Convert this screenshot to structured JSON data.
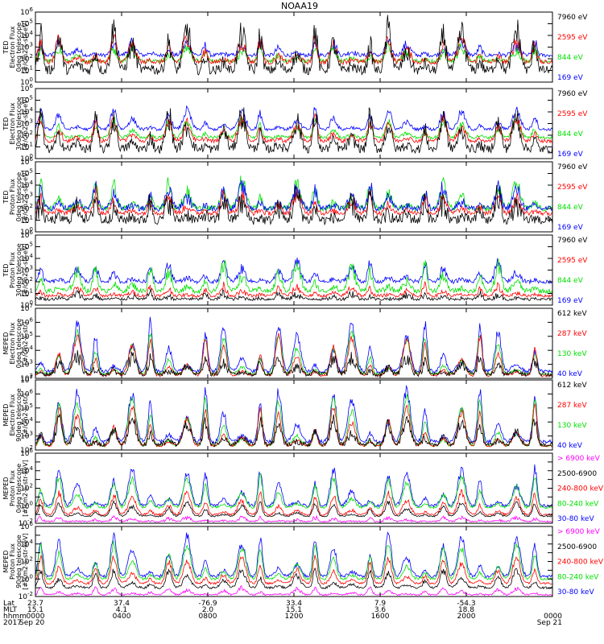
{
  "title": "NOAA19",
  "colors": {
    "black": "#000000",
    "blue": "#0000ff",
    "red": "#ff0000",
    "green": "#00e000",
    "magenta": "#ff00ff"
  },
  "chart_data": [
    {
      "type": "line",
      "ylabel": [
        "TED",
        "Electron Flux",
        "0deg telescope",
        "[#/cm2-s-str-eV]"
      ],
      "ylog": true,
      "ylim_exp": [
        0,
        6
      ],
      "ytick_exp": [
        0,
        1,
        2,
        3,
        4,
        5,
        6
      ],
      "legend": [
        {
          "label": "7960 eV",
          "color": "#000000"
        },
        {
          "label": "2595 eV",
          "color": "#ff0000"
        },
        {
          "label": "844 eV",
          "color": "#00e000"
        },
        {
          "label": "169 eV",
          "color": "#0000ff"
        }
      ],
      "series": [
        {
          "color": "#0000ff",
          "base": 2.3,
          "peak": 3.4,
          "noise": 0.4
        },
        {
          "color": "#00e000",
          "base": 1.8,
          "peak": 3.0,
          "noise": 0.4
        },
        {
          "color": "#ff0000",
          "base": 1.7,
          "peak": 3.8,
          "noise": 0.5
        },
        {
          "color": "#000000",
          "base": 1.0,
          "peak": 4.6,
          "noise": 1.0
        }
      ]
    },
    {
      "type": "line",
      "ylabel": [
        "TED",
        "Electron Flux",
        "30deg telescope",
        "[#/cm2-s-str-eV]"
      ],
      "ylog": true,
      "ylim_exp": [
        0,
        6
      ],
      "ytick_exp": [
        0,
        1,
        2,
        3,
        4,
        5,
        6
      ],
      "legend": [
        {
          "label": "7960 eV",
          "color": "#000000"
        },
        {
          "label": "2595 eV",
          "color": "#ff0000"
        },
        {
          "label": "844 eV",
          "color": "#00e000"
        },
        {
          "label": "169 eV",
          "color": "#0000ff"
        }
      ],
      "series": [
        {
          "color": "#0000ff",
          "base": 2.5,
          "peak": 4.2,
          "noise": 0.3
        },
        {
          "color": "#00e000",
          "base": 1.8,
          "peak": 3.3,
          "noise": 0.3
        },
        {
          "color": "#ff0000",
          "base": 1.5,
          "peak": 3.5,
          "noise": 0.4
        },
        {
          "color": "#000000",
          "base": 0.8,
          "peak": 3.8,
          "noise": 0.9
        }
      ]
    },
    {
      "type": "line",
      "ylabel": [
        "TED",
        "Proton Flux",
        "0deg telescope",
        "[#/cm2-s-str-eV]"
      ],
      "ylog": true,
      "ylim_exp": [
        0,
        6
      ],
      "ytick_exp": [
        0,
        1,
        2,
        3,
        4,
        5,
        6
      ],
      "legend": [
        {
          "label": "7960 eV",
          "color": "#000000"
        },
        {
          "label": "2595 eV",
          "color": "#ff0000"
        },
        {
          "label": "844 eV",
          "color": "#00e000"
        },
        {
          "label": "169 eV",
          "color": "#0000ff"
        }
      ],
      "series": [
        {
          "color": "#00e000",
          "base": 2.0,
          "peak": 4.3,
          "noise": 0.6
        },
        {
          "color": "#0000ff",
          "base": 2.0,
          "peak": 3.9,
          "noise": 0.6
        },
        {
          "color": "#ff0000",
          "base": 1.6,
          "peak": 3.3,
          "noise": 0.5
        },
        {
          "color": "#000000",
          "base": 1.0,
          "peak": 3.0,
          "noise": 1.0
        }
      ]
    },
    {
      "type": "line",
      "ylabel": [
        "TED",
        "Proton Flux",
        "30deg telescope",
        "[#/cm2-s-str-eV]"
      ],
      "ylog": true,
      "ylim_exp": [
        0,
        6
      ],
      "ytick_exp": [
        0,
        1,
        2,
        3,
        4,
        5,
        6
      ],
      "legend": [
        {
          "label": "7960 eV",
          "color": "#000000"
        },
        {
          "label": "2595 eV",
          "color": "#ff0000"
        },
        {
          "label": "844 eV",
          "color": "#00e000"
        },
        {
          "label": "169 eV",
          "color": "#0000ff"
        }
      ],
      "series": [
        {
          "color": "#0000ff",
          "base": 2.0,
          "peak": 3.6,
          "noise": 0.4
        },
        {
          "color": "#00e000",
          "base": 1.2,
          "peak": 3.4,
          "noise": 0.5
        },
        {
          "color": "#ff0000",
          "base": 0.8,
          "peak": 1.6,
          "noise": 0.3
        },
        {
          "color": "#000000",
          "base": 0.5,
          "peak": 1.0,
          "noise": 0.3
        }
      ]
    },
    {
      "type": "line",
      "ylabel": [
        "MEPED",
        "Electron Flux",
        "0deg telescope",
        "[#/cm2-s-str]"
      ],
      "ylog": true,
      "ylim_exp": [
        2,
        7
      ],
      "ytick_exp": [
        2,
        3,
        4,
        5,
        6,
        7
      ],
      "legend": [
        {
          "label": "612 keV",
          "color": "#000000"
        },
        {
          "label": "287 keV",
          "color": "#ff0000"
        },
        {
          "label": "130 keV",
          "color": "#00e000"
        },
        {
          "label": "40 keV",
          "color": "#0000ff"
        }
      ],
      "series": [
        {
          "color": "#0000ff",
          "base": 2.5,
          "peak": 6.0,
          "noise": 0.3
        },
        {
          "color": "#00e000",
          "base": 2.3,
          "peak": 5.3,
          "noise": 0.2
        },
        {
          "color": "#ff0000",
          "base": 2.2,
          "peak": 5.0,
          "noise": 0.2
        },
        {
          "color": "#000000",
          "base": 2.3,
          "peak": 3.6,
          "noise": 0.4
        }
      ]
    },
    {
      "type": "line",
      "ylabel": [
        "MEPED",
        "Electron Flux",
        "90deg telescope",
        "[#/cm2-s-str]"
      ],
      "ylog": true,
      "ylim_exp": [
        2,
        7
      ],
      "ytick_exp": [
        2,
        3,
        4,
        5,
        6,
        7
      ],
      "legend": [
        {
          "label": "612 keV",
          "color": "#000000"
        },
        {
          "label": "287 keV",
          "color": "#ff0000"
        },
        {
          "label": "130 keV",
          "color": "#00e000"
        },
        {
          "label": "40 keV",
          "color": "#0000ff"
        }
      ],
      "series": [
        {
          "color": "#0000ff",
          "base": 2.6,
          "peak": 6.3,
          "noise": 0.3
        },
        {
          "color": "#00e000",
          "base": 2.3,
          "peak": 5.8,
          "noise": 0.2
        },
        {
          "color": "#ff0000",
          "base": 2.3,
          "peak": 5.1,
          "noise": 0.2
        },
        {
          "color": "#000000",
          "base": 2.4,
          "peak": 4.2,
          "noise": 0.4
        }
      ]
    },
    {
      "type": "line",
      "ylabel": [
        "MEPED",
        "Proton Flux",
        "0deg telescope",
        "[#/cm2-s-str-keV]"
      ],
      "ylog": true,
      "ylim_exp": [
        -2,
        6
      ],
      "ytick_exp": [
        -2,
        0,
        2,
        4,
        6
      ],
      "legend": [
        {
          "label": "> 6900 keV",
          "color": "#ff00ff"
        },
        {
          "label": "2500-6900",
          "color": "#000000"
        },
        {
          "label": "240-800 keV",
          "color": "#ff0000"
        },
        {
          "label": "80-240 keV",
          "color": "#00e000"
        },
        {
          "label": "30-80 keV",
          "color": "#0000ff"
        }
      ],
      "series": [
        {
          "color": "#0000ff",
          "base": 0.0,
          "peak": 4.2,
          "noise": 0.4
        },
        {
          "color": "#00e000",
          "base": -0.2,
          "peak": 3.3,
          "noise": 0.3
        },
        {
          "color": "#ff0000",
          "base": -1.0,
          "peak": 1.5,
          "noise": 0.3
        },
        {
          "color": "#000000",
          "base": -1.2,
          "peak": 0.4,
          "noise": 0.2
        },
        {
          "color": "#ff00ff",
          "base": -1.8,
          "peak": -1.3,
          "noise": 0.2
        }
      ]
    },
    {
      "type": "line",
      "ylabel": [
        "MEPED",
        "Proton Flux",
        "90deg telescope",
        "[#/cm2-s-str-keV]"
      ],
      "ylog": true,
      "ylim_exp": [
        -2,
        6
      ],
      "ytick_exp": [
        -2,
        0,
        2,
        4,
        6
      ],
      "legend": [
        {
          "label": "> 6900 keV",
          "color": "#ff00ff"
        },
        {
          "label": "2500-6900",
          "color": "#000000"
        },
        {
          "label": "240-800 keV",
          "color": "#ff0000"
        },
        {
          "label": "80-240 keV",
          "color": "#00e000"
        },
        {
          "label": "30-80 keV",
          "color": "#0000ff"
        }
      ],
      "series": [
        {
          "color": "#0000ff",
          "base": 0.3,
          "peak": 5.0,
          "noise": 0.4
        },
        {
          "color": "#00e000",
          "base": 0.0,
          "peak": 4.0,
          "noise": 0.3
        },
        {
          "color": "#ff0000",
          "base": -0.5,
          "peak": 2.5,
          "noise": 0.3
        },
        {
          "color": "#000000",
          "base": -1.0,
          "peak": 1.0,
          "noise": 0.3
        },
        {
          "color": "#ff00ff",
          "base": -1.8,
          "peak": -1.0,
          "noise": 0.2
        }
      ]
    }
  ],
  "x_axis": {
    "row_labels": [
      "Lat",
      "MLT",
      "hhmm",
      "2017"
    ],
    "ticks": [
      {
        "frac": 0.0,
        "lat": "23.7",
        "mlt": "15.1",
        "hhmm": "0000",
        "date": "Sep 20"
      },
      {
        "frac": 0.1667,
        "lat": "37.4",
        "mlt": "4.1",
        "hhmm": "0400",
        "date": ""
      },
      {
        "frac": 0.3333,
        "lat": "-76.9",
        "mlt": "2.0",
        "hhmm": "0800",
        "date": ""
      },
      {
        "frac": 0.5,
        "lat": "33.4",
        "mlt": "15.1",
        "hhmm": "1200",
        "date": ""
      },
      {
        "frac": 0.6667,
        "lat": "7.9",
        "mlt": "3.6",
        "hhmm": "1600",
        "date": ""
      },
      {
        "frac": 0.8333,
        "lat": "-54.3",
        "mlt": "18.8",
        "hhmm": "2000",
        "date": ""
      },
      {
        "frac": 1.0,
        "lat": "",
        "mlt": "",
        "hhmm": "0000",
        "date": "Sep 21"
      }
    ]
  }
}
